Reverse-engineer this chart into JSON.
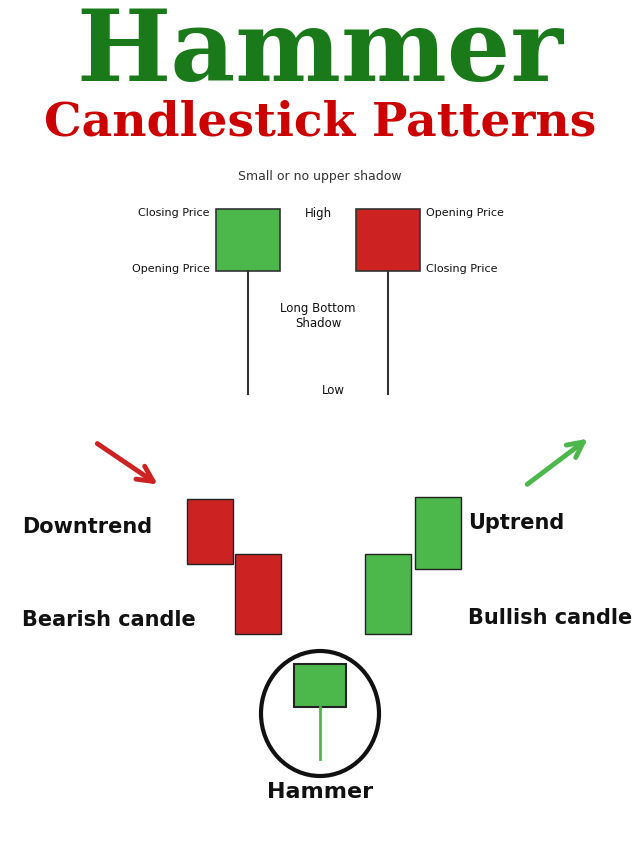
{
  "title_hammer": "Hammer",
  "title_sub": "Candlestick Patterns",
  "title_hammer_color": "#1a7a1a",
  "title_sub_color": "#cc0000",
  "bg_color": "#ffffff",
  "green_color": "#4cb84c",
  "red_color": "#cc2222",
  "black_color": "#111111",
  "small_shadow_label": "Small or no upper shadow",
  "diagram_labels": {
    "closing_price_left": "Closing Price",
    "opening_price_left": "Opening Price",
    "high": "High",
    "closing_price_right": "Closing Price",
    "opening_price_right": "Opening Price",
    "long_bottom_shadow": "Long Bottom\nShadow",
    "low": "Low"
  },
  "bottom_labels": {
    "downtrend": "Downtrend",
    "bearish_candle": "Bearish candle",
    "bullish_candle": "Bullish candle",
    "uptrend": "Uptrend",
    "hammer": "Hammer"
  },
  "fig_width": 6.4,
  "fig_height": 8.53,
  "dpi": 100
}
